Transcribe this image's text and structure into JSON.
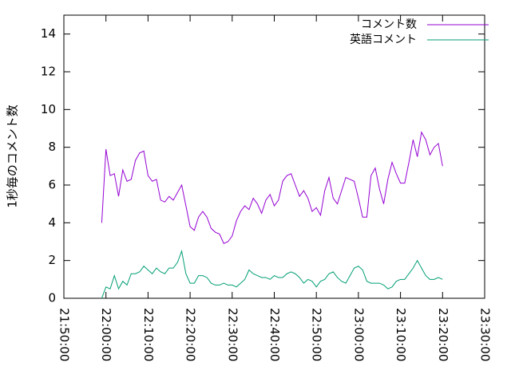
{
  "chart_data": {
    "type": "line",
    "y_label": "1秒毎のコメント数",
    "x": [
      "21:59:00",
      "22:00:00",
      "22:01:00",
      "22:02:00",
      "22:03:00",
      "22:04:00",
      "22:05:00",
      "22:06:00",
      "22:07:00",
      "22:08:00",
      "22:09:00",
      "22:10:00",
      "22:11:00",
      "22:12:00",
      "22:13:00",
      "22:14:00",
      "22:15:00",
      "22:16:00",
      "22:17:00",
      "22:18:00",
      "22:19:00",
      "22:20:00",
      "22:21:00",
      "22:22:00",
      "22:23:00",
      "22:24:00",
      "22:25:00",
      "22:26:00",
      "22:27:00",
      "22:28:00",
      "22:29:00",
      "22:30:00",
      "22:31:00",
      "22:32:00",
      "22:33:00",
      "22:34:00",
      "22:35:00",
      "22:36:00",
      "22:37:00",
      "22:38:00",
      "22:39:00",
      "22:40:00",
      "22:41:00",
      "22:42:00",
      "22:43:00",
      "22:44:00",
      "22:45:00",
      "22:46:00",
      "22:47:00",
      "22:48:00",
      "22:49:00",
      "22:50:00",
      "22:51:00",
      "22:52:00",
      "22:53:00",
      "22:54:00",
      "22:55:00",
      "22:56:00",
      "22:57:00",
      "22:58:00",
      "22:59:00",
      "23:00:00",
      "23:01:00",
      "23:02:00",
      "23:03:00",
      "23:04:00",
      "23:05:00",
      "23:06:00",
      "23:07:00",
      "23:08:00",
      "23:09:00",
      "23:10:00",
      "23:11:00",
      "23:12:00",
      "23:13:00",
      "23:14:00",
      "23:15:00",
      "23:16:00",
      "23:17:00",
      "23:18:00",
      "23:19:00",
      "23:20:00"
    ],
    "series": [
      {
        "name": "コメント数",
        "color": "#9400d3",
        "values": [
          4.0,
          7.9,
          6.5,
          6.6,
          5.4,
          6.8,
          6.2,
          6.3,
          7.3,
          7.7,
          7.8,
          6.5,
          6.2,
          6.3,
          5.2,
          5.1,
          5.4,
          5.2,
          5.6,
          6.0,
          4.9,
          3.8,
          3.6,
          4.3,
          4.6,
          4.3,
          3.7,
          3.5,
          3.4,
          2.9,
          3.0,
          3.3,
          4.1,
          4.6,
          4.9,
          4.7,
          5.3,
          5.0,
          4.5,
          5.2,
          5.5,
          4.9,
          5.2,
          6.2,
          6.5,
          6.6,
          6.0,
          5.4,
          5.7,
          5.3,
          4.6,
          4.8,
          4.4,
          5.7,
          6.4,
          5.3,
          5.0,
          5.7,
          6.4,
          6.3,
          6.2,
          5.3,
          4.3,
          4.3,
          6.5,
          6.9,
          5.8,
          5.0,
          6.3,
          7.2,
          6.6,
          6.1,
          6.1,
          7.2,
          8.4,
          7.5,
          8.8,
          8.4,
          7.6,
          8.0,
          8.2,
          7.0
        ]
      },
      {
        "name": "英語コメント",
        "color": "#009e73",
        "values": [
          0,
          0.6,
          0.5,
          1.2,
          0.5,
          0.9,
          0.7,
          1.3,
          1.3,
          1.4,
          1.7,
          1.5,
          1.3,
          1.6,
          1.4,
          1.3,
          1.6,
          1.6,
          1.9,
          2.5,
          1.3,
          0.8,
          0.8,
          1.2,
          1.2,
          1.1,
          0.8,
          0.7,
          0.7,
          0.8,
          0.7,
          0.7,
          0.6,
          0.8,
          1.0,
          1.5,
          1.3,
          1.2,
          1.1,
          1.1,
          1.0,
          1.2,
          1.1,
          1.1,
          1.3,
          1.4,
          1.3,
          1.1,
          0.8,
          1.0,
          0.9,
          0.6,
          0.9,
          1.0,
          1.3,
          1.4,
          1.1,
          0.9,
          0.8,
          1.2,
          1.6,
          1.7,
          1.5,
          0.9,
          0.8,
          0.8,
          0.8,
          0.7,
          0.5,
          0.6,
          0.9,
          1.0,
          1.0,
          1.3,
          1.6,
          2.0,
          1.6,
          1.2,
          1.0,
          1.0,
          1.1,
          1.0
        ]
      }
    ],
    "xlim": [
      "21:50:00",
      "23:30:00"
    ],
    "xticks": [
      "21:50:00",
      "22:00:00",
      "22:10:00",
      "22:20:00",
      "22:30:00",
      "22:40:00",
      "22:50:00",
      "23:00:00",
      "23:10:00",
      "23:20:00",
      "23:30:00"
    ],
    "ylim": [
      0,
      15
    ],
    "yticks": [
      0,
      2,
      4,
      6,
      8,
      10,
      12,
      14
    ],
    "legend": "top-right"
  }
}
